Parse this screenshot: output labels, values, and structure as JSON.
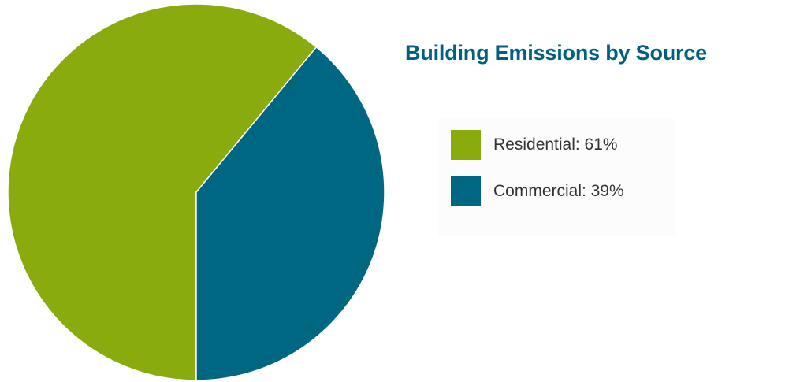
{
  "chart_data": {
    "type": "pie",
    "title": "Building Emissions by Source",
    "slices": [
      {
        "label": "Residential",
        "value": 61,
        "color": "#8aab0d"
      },
      {
        "label": "Commercial",
        "value": 39,
        "color": "#006782"
      }
    ],
    "legend": {
      "placement": "right",
      "entries": [
        {
          "text": "Residential: 61%",
          "color": "#8aab0d"
        },
        {
          "text": "Commercial: 39%",
          "color": "#006782"
        }
      ]
    }
  },
  "colors": {
    "title": "#00607f",
    "slice_border": "#ffffff"
  }
}
